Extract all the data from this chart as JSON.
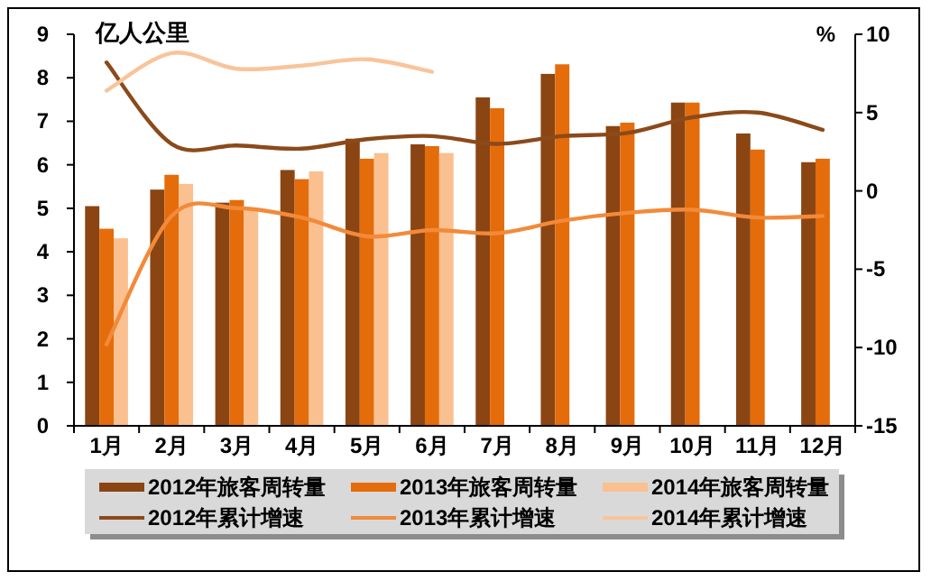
{
  "chart_data": {
    "type": "bar",
    "ylabel": "亿人公里",
    "y2label": "%",
    "categories": [
      "1月",
      "2月",
      "3月",
      "4月",
      "5月",
      "6月",
      "7月",
      "8月",
      "9月",
      "10月",
      "11月",
      "12月"
    ],
    "series": [
      {
        "name": "2012年旅客周转量",
        "color": "#8b4513",
        "values": [
          5.05,
          5.43,
          5.13,
          5.88,
          6.6,
          6.47,
          7.55,
          8.09,
          6.89,
          7.43,
          6.72,
          6.06
        ]
      },
      {
        "name": "2013年旅客周转量",
        "color": "#e46c0a",
        "values": [
          4.53,
          5.77,
          5.19,
          5.67,
          6.14,
          6.43,
          7.3,
          8.31,
          6.97,
          7.43,
          6.35,
          6.14
        ]
      },
      {
        "name": "2014年旅客周转量",
        "color": "#fac090",
        "values": [
          4.31,
          5.56,
          4.95,
          5.85,
          6.27,
          6.27,
          null,
          null,
          null,
          null,
          null,
          null
        ]
      },
      {
        "name": "2012年累计增速",
        "type": "line",
        "axis": "y2",
        "color": "#8b4a1a",
        "values": [
          8.2,
          3.0,
          2.9,
          2.7,
          3.3,
          3.5,
          3.0,
          3.5,
          3.7,
          4.7,
          5.0,
          3.9
        ]
      },
      {
        "name": "2013年累计增速",
        "type": "line",
        "axis": "y2",
        "color": "#f28a3a",
        "values": [
          -9.8,
          -1.6,
          -1.1,
          -1.7,
          -2.9,
          -2.5,
          -2.7,
          -1.9,
          -1.4,
          -1.2,
          -1.7,
          -1.6
        ]
      },
      {
        "name": "2014年累计增速",
        "type": "line",
        "axis": "y2",
        "color": "#f9c49a",
        "values": [
          6.4,
          8.8,
          7.8,
          8.0,
          8.4,
          7.6,
          null,
          null,
          null,
          null,
          null,
          null
        ]
      }
    ],
    "ylim": [
      0,
      9
    ],
    "yticks": [
      0,
      1,
      2,
      3,
      4,
      5,
      6,
      7,
      8,
      9
    ],
    "y2lim": [
      -15,
      10
    ],
    "y2ticks": [
      -15,
      -10,
      -5,
      0,
      5,
      10
    ],
    "legend": "bottom"
  }
}
